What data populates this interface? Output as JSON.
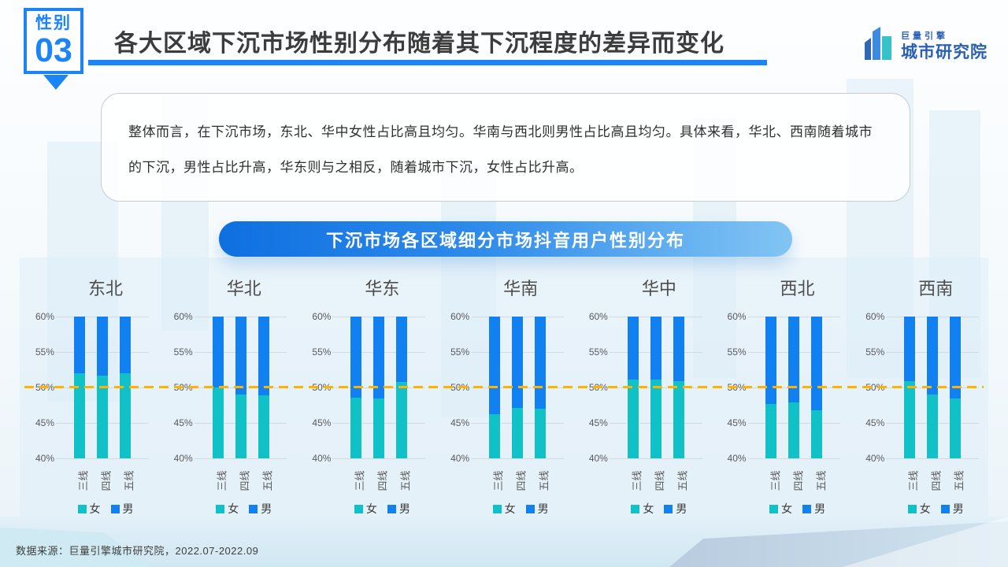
{
  "header": {
    "badge_top": "性别",
    "badge_number": "03",
    "title": "各大区域下沉市场性别分布随着其下沉程度的差异而变化",
    "logo_small": "巨量引擎",
    "logo_main": "城市研究院"
  },
  "note": {
    "text": "整体而言，在下沉市场，东北、华中女性占比高且均匀。华南与西北则男性占比高且均匀。具体来看，华北、西南随着城市的下沉，男性占比升高，华东则与之相反，随着城市下沉，女性占比升高。"
  },
  "chart_banner": "下沉市场各区域细分市场抖音用户性别分布",
  "footer": {
    "source": "数据来源：巨量引擎城市研究院，2022.07-2022.09"
  },
  "chart_data": {
    "type": "bar",
    "stacked": true,
    "title": "下沉市场各区域细分市场抖音用户性别分布",
    "unit": "%",
    "ylim": [
      40,
      60
    ],
    "yticks": [
      "60%",
      "55%",
      "50%",
      "45%",
      "40%"
    ],
    "ytick_values": [
      60,
      55,
      50,
      45,
      40
    ],
    "grid": true,
    "legend_position": "bottom",
    "reference_line": {
      "value": 50,
      "style": "dashed",
      "color": "#FFB200"
    },
    "categories": [
      "三线",
      "四线",
      "五线"
    ],
    "series_names": [
      "女",
      "男"
    ],
    "colors": {
      "female": "#10C1C7",
      "male": "#1180F0"
    },
    "note": "bars are stacked female(bottom)+male(top), axis window 40%-60%, male = 100 - female",
    "regions": [
      {
        "name": "东北",
        "female": [
          52.0,
          51.7,
          52.0
        ]
      },
      {
        "name": "华北",
        "female": [
          50.0,
          49.0,
          48.9
        ]
      },
      {
        "name": "华东",
        "female": [
          48.6,
          48.4,
          50.8
        ]
      },
      {
        "name": "华南",
        "female": [
          46.2,
          47.1,
          47.0
        ]
      },
      {
        "name": "华中",
        "female": [
          51.1,
          51.1,
          50.9
        ]
      },
      {
        "name": "西北",
        "female": [
          47.7,
          47.9,
          46.8
        ]
      },
      {
        "name": "西南",
        "female": [
          50.9,
          49.0,
          48.5
        ]
      }
    ]
  }
}
